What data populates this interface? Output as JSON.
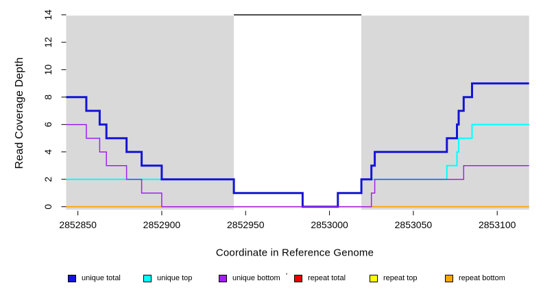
{
  "chart_data": {
    "type": "line",
    "style": "step-coverage-plot",
    "xlabel": "Coordinate in Reference Genome",
    "ylabel": "Read Coverage Depth",
    "xlim": [
      2852843,
      2853119
    ],
    "ylim": [
      0,
      14
    ],
    "x_ticks": [
      2852850,
      2852900,
      2852950,
      2853000,
      2853050,
      2853100
    ],
    "y_ticks": [
      0,
      2,
      4,
      6,
      8,
      10,
      12,
      14
    ],
    "grid": false,
    "shaded_regions": {
      "color": "#D9D9D9",
      "x_ranges": [
        [
          2852843,
          2852943
        ],
        [
          2853019,
          2853119
        ]
      ]
    },
    "mask_line": {
      "color": "#000000",
      "y": 14,
      "x_range": [
        2852943,
        2853019
      ]
    },
    "series": [
      {
        "name": "repeat total",
        "color": "#E60000",
        "width": 1.5,
        "points": [
          [
            2852843,
            0
          ],
          [
            2853119,
            0
          ]
        ]
      },
      {
        "name": "repeat top",
        "color": "#FFFF00",
        "width": 1.5,
        "points": [
          [
            2852843,
            0
          ],
          [
            2853119,
            0
          ]
        ]
      },
      {
        "name": "repeat bottom",
        "color": "#FFA500",
        "width": 1.8,
        "points": [
          [
            2852843,
            0
          ],
          [
            2853119,
            0
          ]
        ]
      },
      {
        "name": "unique top",
        "color": "#00FFFF",
        "width": 2,
        "points": [
          [
            2852843,
            2
          ],
          [
            2852943,
            2
          ],
          [
            2852943,
            1
          ],
          [
            2852984,
            1
          ],
          [
            2852984,
            0
          ],
          [
            2853005,
            0
          ],
          [
            2853005,
            1
          ],
          [
            2853019,
            1
          ],
          [
            2853019,
            2
          ],
          [
            2853070,
            2
          ],
          [
            2853070,
            3
          ],
          [
            2853076,
            3
          ],
          [
            2853076,
            4
          ],
          [
            2853077,
            4
          ],
          [
            2853077,
            5
          ],
          [
            2853085,
            5
          ],
          [
            2853085,
            6
          ],
          [
            2853119,
            6
          ]
        ]
      },
      {
        "name": "unique total",
        "color": "#1414D6",
        "width": 3,
        "points": [
          [
            2852843,
            8
          ],
          [
            2852855,
            8
          ],
          [
            2852855,
            7
          ],
          [
            2852863,
            7
          ],
          [
            2852863,
            6
          ],
          [
            2852867,
            6
          ],
          [
            2852867,
            5
          ],
          [
            2852879,
            5
          ],
          [
            2852879,
            4
          ],
          [
            2852888,
            4
          ],
          [
            2852888,
            3
          ],
          [
            2852900,
            3
          ],
          [
            2852900,
            2
          ],
          [
            2852943,
            2
          ],
          [
            2852943,
            1
          ],
          [
            2852984,
            1
          ],
          [
            2852984,
            0
          ],
          [
            2853005,
            0
          ],
          [
            2853005,
            1
          ],
          [
            2853019,
            1
          ],
          [
            2853019,
            2
          ],
          [
            2853025,
            2
          ],
          [
            2853025,
            3
          ],
          [
            2853027,
            3
          ],
          [
            2853027,
            4
          ],
          [
            2853070,
            4
          ],
          [
            2853070,
            5
          ],
          [
            2853076,
            5
          ],
          [
            2853076,
            6
          ],
          [
            2853077,
            6
          ],
          [
            2853077,
            7
          ],
          [
            2853080,
            7
          ],
          [
            2853080,
            8
          ],
          [
            2853085,
            8
          ],
          [
            2853085,
            9
          ],
          [
            2853119,
            9
          ]
        ]
      },
      {
        "name": "unique bottom",
        "color": "#A020F0",
        "width": 1.5,
        "points": [
          [
            2852843,
            6
          ],
          [
            2852855,
            6
          ],
          [
            2852855,
            5
          ],
          [
            2852863,
            5
          ],
          [
            2852863,
            4
          ],
          [
            2852867,
            4
          ],
          [
            2852867,
            3
          ],
          [
            2852879,
            3
          ],
          [
            2852879,
            2
          ],
          [
            2852888,
            2
          ],
          [
            2852888,
            1
          ],
          [
            2852900,
            1
          ],
          [
            2852900,
            0
          ],
          [
            2853025,
            0
          ],
          [
            2853025,
            1
          ],
          [
            2853027,
            1
          ],
          [
            2853027,
            2
          ],
          [
            2853080,
            2
          ],
          [
            2853080,
            3
          ],
          [
            2853119,
            3
          ]
        ]
      }
    ],
    "legend": {
      "position": "bottom",
      "stray_mark": "'",
      "items": [
        {
          "label": "unique total",
          "color": "#1414D6"
        },
        {
          "label": "unique top",
          "color": "#00FFFF"
        },
        {
          "label": "unique bottom",
          "color": "#A020F0"
        },
        {
          "label": "repeat total",
          "color": "#E60000"
        },
        {
          "label": "repeat top",
          "color": "#FFFF00"
        },
        {
          "label": "repeat bottom",
          "color": "#FFA500"
        }
      ]
    }
  }
}
